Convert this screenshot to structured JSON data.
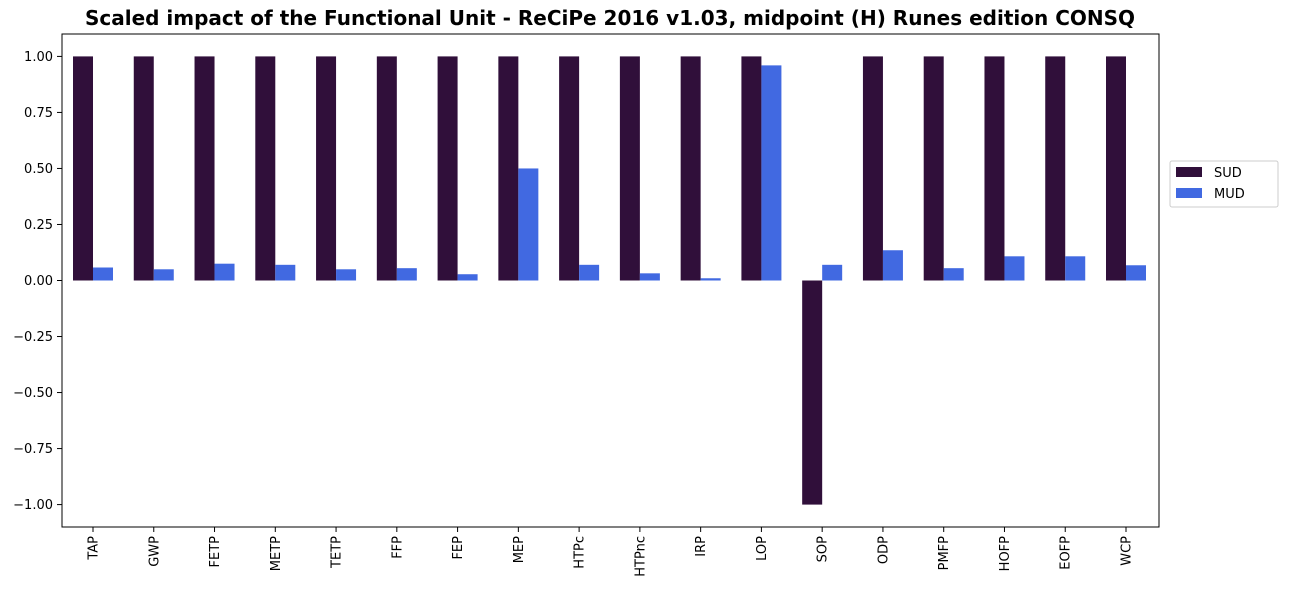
{
  "chart_data": {
    "type": "bar",
    "title": "Scaled impact of the Functional Unit - ReCiPe 2016 v1.03, midpoint (H) Runes edition CONSQ",
    "xlabel": "",
    "ylabel": "",
    "categories": [
      "TAP",
      "GWP",
      "FETP",
      "METP",
      "TETP",
      "FFP",
      "FEP",
      "MEP",
      "HTPc",
      "HTPnc",
      "IRP",
      "LOP",
      "SOP",
      "ODP",
      "PMFP",
      "HOFP",
      "EOFP",
      "WCP"
    ],
    "series": [
      {
        "name": "SUD",
        "color": "#300f3a",
        "values": [
          1.0,
          1.0,
          1.0,
          1.0,
          1.0,
          1.0,
          1.0,
          1.0,
          1.0,
          1.0,
          1.0,
          1.0,
          -1.0,
          1.0,
          1.0,
          1.0,
          1.0,
          1.0
        ]
      },
      {
        "name": "MUD",
        "color": "#4169e1",
        "values": [
          0.058,
          0.05,
          0.075,
          0.07,
          0.05,
          0.055,
          0.028,
          0.5,
          0.07,
          0.032,
          0.01,
          0.96,
          0.07,
          0.135,
          0.055,
          0.108,
          0.108,
          0.068
        ]
      }
    ],
    "ylim": [
      -1.1,
      1.1
    ],
    "yticks": [
      1.0,
      0.75,
      0.5,
      0.25,
      0.0,
      -0.25,
      -0.5,
      -0.75,
      -1.0
    ],
    "ytick_labels": [
      "1.00",
      "0.75",
      "0.50",
      "0.25",
      "0.00",
      "−0.25",
      "−0.50",
      "−0.75",
      "−1.00"
    ],
    "grid": false,
    "legend_placement": "right"
  }
}
